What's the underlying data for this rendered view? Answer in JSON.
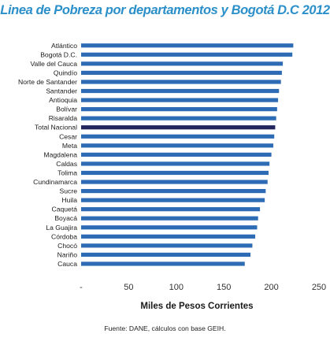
{
  "chart_data": {
    "type": "bar",
    "orientation": "horizontal",
    "title": "Linea de Pobreza por departamentos y Bogotá D.C 2012",
    "xlabel": "Miles de Pesos Corrientes",
    "ylabel": "",
    "xlim": [
      0,
      250
    ],
    "x_ticks": [
      0,
      50,
      100,
      150,
      200,
      250
    ],
    "x_tick_labels": [
      "-",
      "50",
      "100",
      "150",
      "200",
      "250"
    ],
    "categories": [
      "Atlántico",
      "Bogotá D.C.",
      "Valle del Cauca",
      "Quindío",
      "Norte de Santander",
      "Santander",
      "Antioquia",
      "Bolívar",
      "Risaralda",
      "Total Nacional",
      "Cesar",
      "Meta",
      "Magdalena",
      "Caldas",
      "Tolima",
      "Cundinamarca",
      "Sucre",
      "Huila",
      "Caquetá",
      "Boyacá",
      "La Guajira",
      "Córdoba",
      "Chocó",
      "Nariño",
      "Cauca"
    ],
    "values": [
      223,
      222,
      212,
      211,
      210,
      208,
      207,
      206,
      205,
      204,
      203,
      202,
      200,
      198,
      197,
      196,
      194,
      193,
      188,
      186,
      185,
      183,
      180,
      178,
      172
    ],
    "highlight_category": "Total Nacional",
    "bar_color": "#2e6bb5",
    "highlight_color": "#22245c",
    "grid": false,
    "legend": "none"
  },
  "source": "Fuente: DANE, cálculos con base GEIH."
}
